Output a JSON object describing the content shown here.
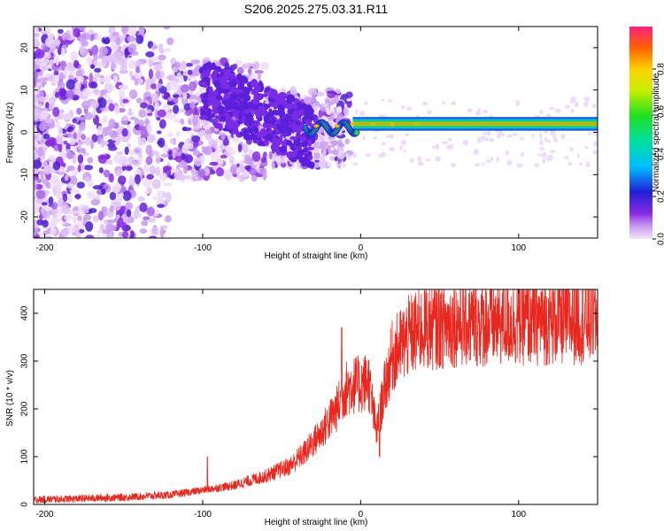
{
  "title": "S206.2025.275.03.31.R11",
  "colors": {
    "snr_line": "#e8281e",
    "scatter_purple": "#7a1fe0",
    "scatter_light": "#d9b8f5",
    "background": "#ffffff"
  },
  "chart_data": [
    {
      "type": "heatmap",
      "name": "spectrogram",
      "xlabel": "Height of straight line (km)",
      "ylabel": "Frequency (Hz)",
      "xlim": [
        -207,
        150
      ],
      "ylim": [
        -25,
        25
      ],
      "xticks": [
        -200,
        -100,
        0,
        100
      ],
      "yticks": [
        -20,
        -10,
        0,
        10,
        20
      ],
      "colorbar": {
        "label": "Normalized spectral amplitude",
        "range": [
          0,
          1
        ],
        "ticks": [
          "0.0",
          "0.2",
          "0.4",
          "0.6",
          "0.8"
        ],
        "tick_values": [
          0.0,
          0.2,
          0.4,
          0.6,
          0.8
        ]
      },
      "description_points": {
        "band_frequency_hz": 2,
        "band_start_km": -35,
        "band_end_km": 150,
        "scatter_region_km": [
          -207,
          -20
        ]
      }
    },
    {
      "type": "line",
      "name": "snr",
      "xlabel": "Height of straight line (km)",
      "ylabel": "SNR (10 * v/v)",
      "xlim": [
        -207,
        150
      ],
      "ylim": [
        0,
        450
      ],
      "xticks": [
        -200,
        -100,
        0,
        100
      ],
      "yticks": [
        0,
        100,
        200,
        300,
        400
      ],
      "x": [
        -207,
        -180,
        -150,
        -120,
        -100,
        -80,
        -60,
        -45,
        -35,
        -25,
        -15,
        -10,
        -5,
        0,
        5,
        10,
        15,
        20,
        25,
        30,
        40,
        50,
        60,
        80,
        100,
        120,
        150
      ],
      "y": [
        10,
        12,
        15,
        20,
        30,
        40,
        60,
        80,
        110,
        150,
        200,
        240,
        250,
        250,
        260,
        150,
        240,
        310,
        330,
        350,
        370,
        375,
        380,
        380,
        385,
        385,
        390
      ],
      "spikes": [
        {
          "x": -97,
          "y": 100
        },
        {
          "x": -12,
          "y": 370
        },
        {
          "x": 12,
          "y": 100
        }
      ]
    }
  ]
}
